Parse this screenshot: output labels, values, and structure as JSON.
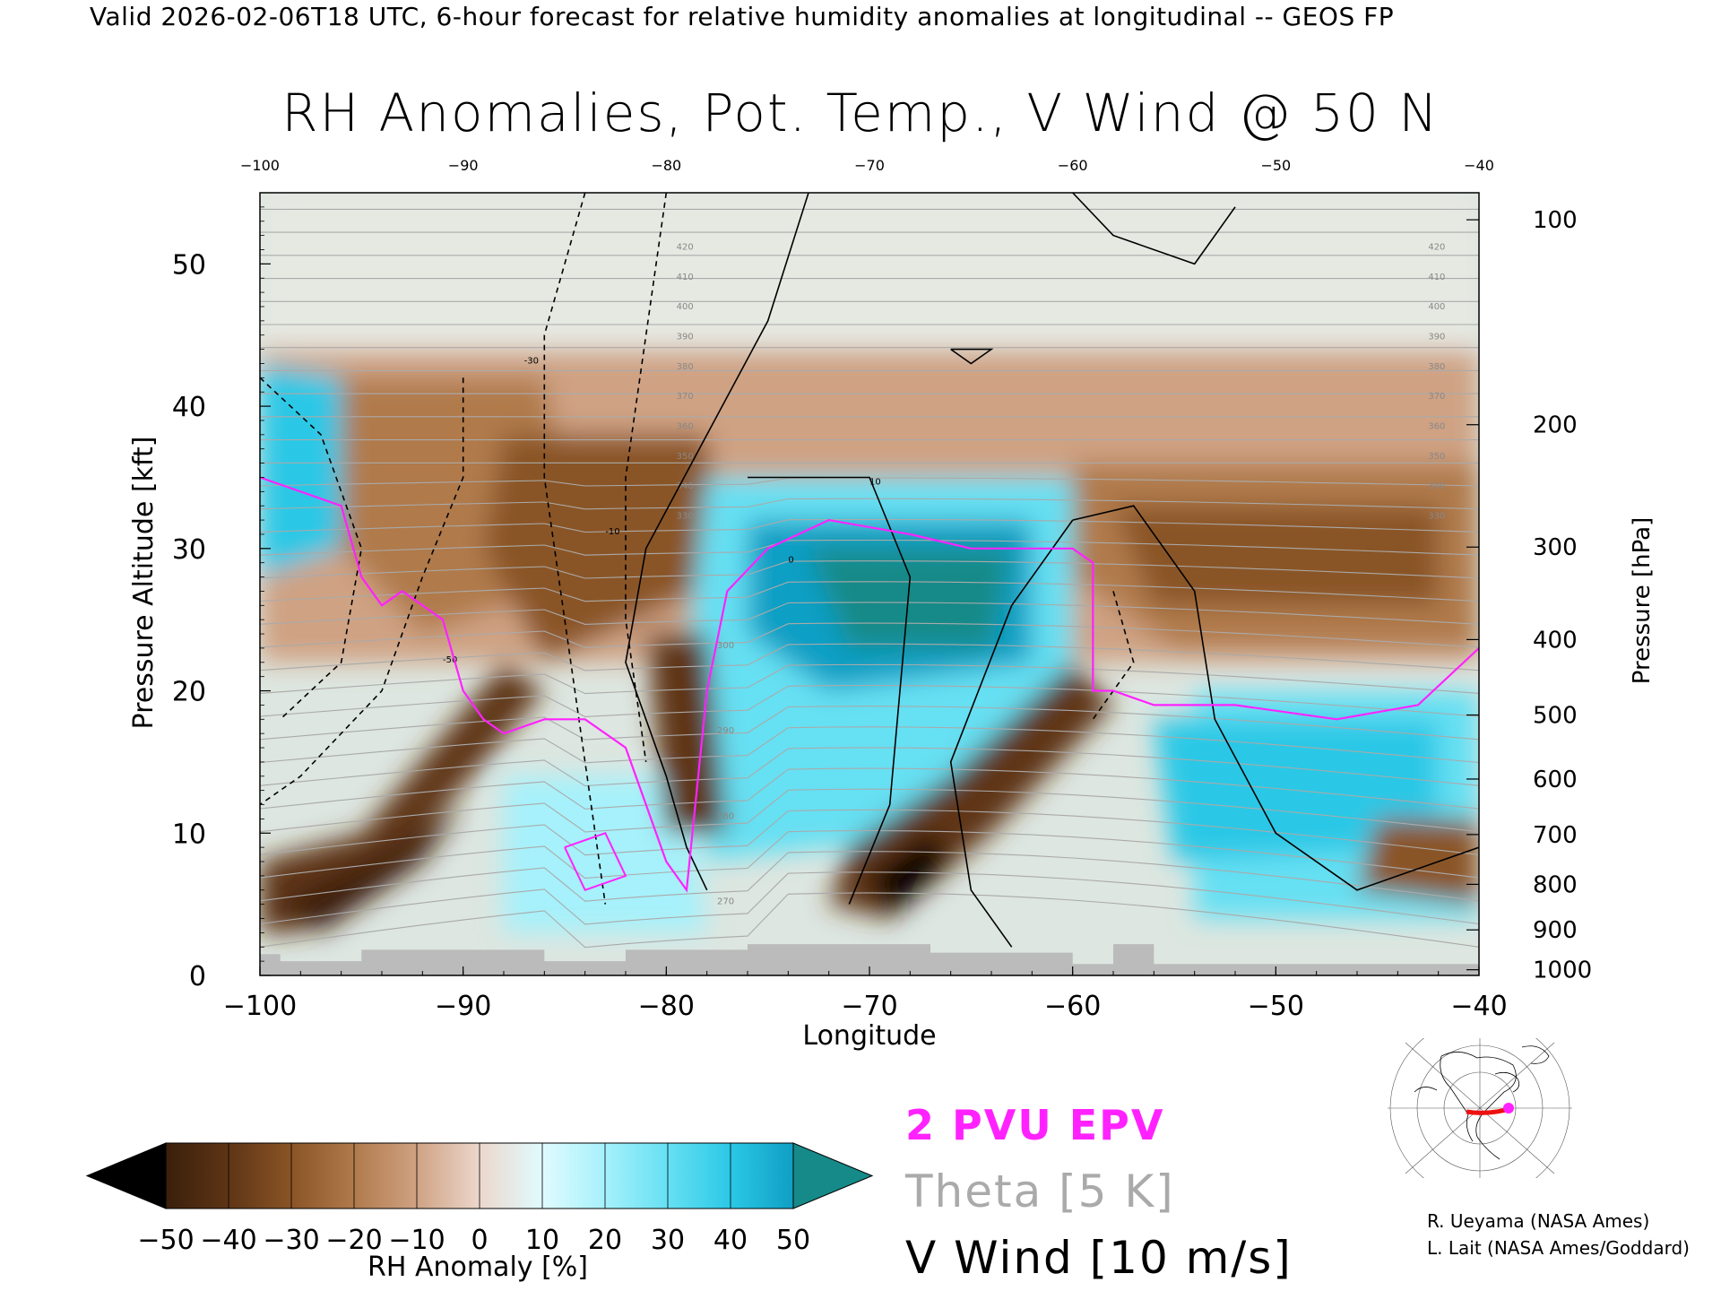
{
  "header": "Valid 2026-02-06T18 UTC, 6-hour forecast for relative humidity anomalies at longitudinal -- GEOS FP",
  "chart_data": {
    "type": "heatmap",
    "title": "RH Anomalies, Pot. Temp., V Wind @ 50 N",
    "xlabel": "Longitude",
    "ylabel_left": "Pressure Altitude [kft]",
    "ylabel_right": "Pressure [hPa]",
    "xlim": [
      -100,
      -40
    ],
    "ylim": [
      0,
      55
    ],
    "x_ticks": [
      -100,
      -90,
      -80,
      -70,
      -60,
      -50,
      -40
    ],
    "x_tick_labels": [
      "−100",
      "−90",
      "−80",
      "−70",
      "−60",
      "−50",
      "−40"
    ],
    "top_tick_labels": [
      "−100",
      "−90",
      "−80",
      "−70",
      "−60",
      "−50",
      "−40"
    ],
    "y_ticks": [
      0,
      10,
      20,
      30,
      40,
      50
    ],
    "y_tick_labels": [
      "0",
      "10",
      "20",
      "30",
      "40",
      "50"
    ],
    "pressure_ticks": [
      {
        "label": "100",
        "kft": 53.1
      },
      {
        "label": "200",
        "kft": 38.7
      },
      {
        "label": "300",
        "kft": 30.1
      },
      {
        "label": "400",
        "kft": 23.6
      },
      {
        "label": "500",
        "kft": 18.3
      },
      {
        "label": "600",
        "kft": 13.8
      },
      {
        "label": "700",
        "kft": 9.9
      },
      {
        "label": "800",
        "kft": 6.4
      },
      {
        "label": "900",
        "kft": 3.2
      },
      {
        "label": "1000",
        "kft": 0.4
      }
    ],
    "colorbar": {
      "label": "RH Anomaly [%]",
      "tick_labels": [
        "−50",
        "−40",
        "−30",
        "−20",
        "−10",
        "0",
        "10",
        "20",
        "30",
        "40",
        "50"
      ],
      "colors": [
        "#3a1f0b",
        "#5e3515",
        "#8a5426",
        "#b07a4c",
        "#cfa283",
        "#ecd7cc",
        "#e0fbff",
        "#a6f1fb",
        "#66e0f3",
        "#2bc8e6",
        "#0f9fc4"
      ],
      "under_color": "#000000",
      "over_color": "#168a88"
    },
    "theta_labels": [
      "420",
      "410",
      "400",
      "390",
      "380",
      "370",
      "360",
      "350",
      "340",
      "330",
      "300",
      "290",
      "280",
      "270"
    ],
    "wind_labels": [
      "10",
      "-10",
      "-30",
      "-50",
      "0"
    ],
    "legend": {
      "pv": "2 PVU EPV",
      "theta": "Theta [5 K]",
      "wind": "V Wind [10 m/s]"
    },
    "colors": {
      "pv": "#ff22ff",
      "theta": "#aaaaaa",
      "wind": "#000000",
      "terrain": "#bbbbbb",
      "stratosphere": "#dde6e0"
    }
  },
  "credits": [
    "R. Ueyama (NASA Ames)",
    "L. Lait (NASA Ames/Goddard)"
  ]
}
